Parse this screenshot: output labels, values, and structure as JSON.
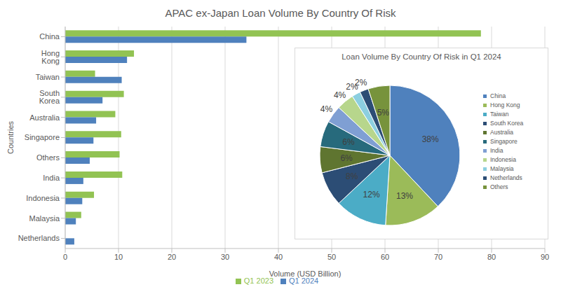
{
  "chart_data": [
    {
      "type": "bar",
      "title": "APAC ex-Japan Loan Volume By Country Of Risk",
      "x_label": "Volume (USD Billion)",
      "y_label": "Countries",
      "orientation": "horizontal",
      "categories": [
        "China",
        "Hong Kong",
        "Taiwan",
        "South Korea",
        "Australia",
        "Singapore",
        "Others",
        "India",
        "Indonesia",
        "Malaysia",
        "Netherlands"
      ],
      "series": [
        {
          "name": "Q1 2023",
          "color": "#92c353",
          "values": [
            78,
            12.9,
            5.6,
            11,
            9.4,
            10.5,
            10.2,
            10.7,
            5.4,
            3,
            null
          ]
        },
        {
          "name": "Q1 2024",
          "color": "#4f81bd",
          "values": [
            34,
            11.6,
            10.6,
            7,
            5.8,
            5.3,
            4.6,
            3.4,
            3.2,
            2,
            1.7
          ]
        }
      ],
      "xlim": [
        0,
        90
      ],
      "xticks": [
        0,
        10,
        20,
        30,
        40,
        50,
        60,
        70,
        80,
        90
      ],
      "grid": true,
      "legend": "bottom"
    },
    {
      "type": "pie",
      "title": "Loan Volume By Country Of Risk in Q1 2024",
      "categories": [
        "China",
        "Hong Kong",
        "Taiwan",
        "South Korea",
        "Australia",
        "Singapore",
        "India",
        "Indonesia",
        "Malaysia",
        "Netherlands",
        "Others"
      ],
      "values": [
        38,
        13,
        12,
        8,
        6,
        6,
        4,
        4,
        2,
        2,
        5
      ],
      "value_labels": [
        "38%",
        "13%",
        "12%",
        "8%",
        "6%",
        "6%",
        "4%",
        "4%",
        "2%",
        "2%",
        "5%"
      ],
      "colors": [
        "#4f81bd",
        "#9bbb59",
        "#4bacc6",
        "#2c4d75",
        "#5f7530",
        "#276a7c",
        "#7f9fd3",
        "#b7d68c",
        "#8ccfe0",
        "#2c4d75",
        "#77933c"
      ],
      "data_labels": true,
      "legend": "right"
    }
  ]
}
